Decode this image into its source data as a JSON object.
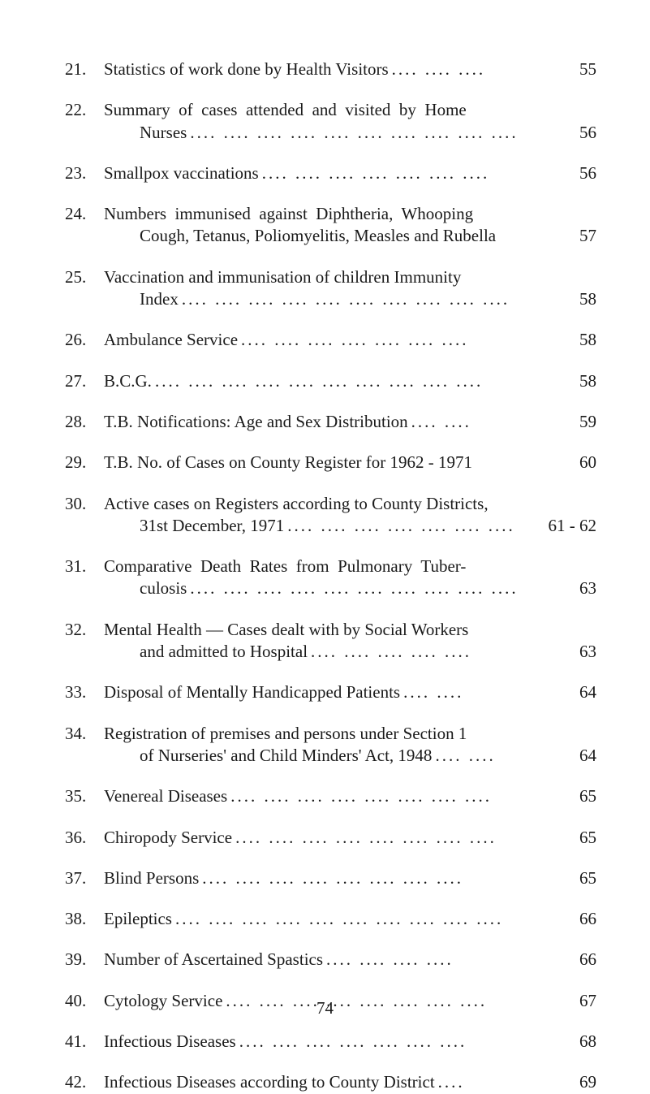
{
  "page_number": "74",
  "entries": [
    {
      "num": "21.",
      "lines": [
        {
          "text": "Statistics of work done by Health Visitors",
          "dots": ".... .... ....",
          "indent": false
        }
      ],
      "page": "55"
    },
    {
      "num": "22.",
      "lines": [
        {
          "text": "Summary  of  cases  attended  and  visited  by  Home",
          "dots": "",
          "indent": false
        },
        {
          "text": "Nurses",
          "dots": ".... .... .... .... .... .... .... .... .... ....",
          "indent": true
        }
      ],
      "page": "56"
    },
    {
      "num": "23.",
      "lines": [
        {
          "text": "Smallpox vaccinations",
          "dots": ".... .... .... .... .... .... ....",
          "indent": false
        }
      ],
      "page": "56"
    },
    {
      "num": "24.",
      "lines": [
        {
          "text": "Numbers  immunised  against  Diphtheria,  Whooping",
          "dots": "",
          "indent": false
        },
        {
          "text": "Cough, Tetanus, Poliomyelitis, Measles and Rubella",
          "dots": "",
          "indent": true
        }
      ],
      "page": "57"
    },
    {
      "num": "25.",
      "lines": [
        {
          "text": "Vaccination and immunisation of children Immunity",
          "dots": "",
          "indent": false
        },
        {
          "text": "Index",
          "dots": ".... .... .... .... .... .... .... .... .... ....",
          "indent": true
        }
      ],
      "page": "58"
    },
    {
      "num": "26.",
      "lines": [
        {
          "text": "Ambulance Service",
          "dots": ".... .... .... .... .... .... ....",
          "indent": false
        }
      ],
      "page": "58"
    },
    {
      "num": "27.",
      "lines": [
        {
          "text": "B.C.G.",
          "dots": ".... .... .... .... .... .... .... .... .... ....",
          "indent": false
        }
      ],
      "page": "58"
    },
    {
      "num": "28.",
      "lines": [
        {
          "text": "T.B. Notifications: Age and Sex Distribution",
          "dots": ".... ....",
          "indent": false
        }
      ],
      "page": "59"
    },
    {
      "num": "29.",
      "lines": [
        {
          "text": "T.B. No. of Cases on County Register for 1962 - 1971",
          "dots": "",
          "indent": false
        }
      ],
      "page": "60"
    },
    {
      "num": "30.",
      "lines": [
        {
          "text": "Active cases on Registers according to County Districts,",
          "dots": "",
          "indent": false
        },
        {
          "text": "31st December, 1971",
          "dots": ".... .... .... .... .... .... ....",
          "indent": true
        }
      ],
      "page": "61 - 62"
    },
    {
      "num": "31.",
      "lines": [
        {
          "text": "Comparative  Death  Rates  from  Pulmonary  Tuber-",
          "dots": "",
          "indent": false
        },
        {
          "text": "culosis",
          "dots": ".... .... .... .... .... .... .... .... .... ....",
          "indent": true
        }
      ],
      "page": "63"
    },
    {
      "num": "32.",
      "lines": [
        {
          "text": "Mental Health — Cases dealt with by Social Workers",
          "dots": "",
          "indent": false
        },
        {
          "text": "and admitted to Hospital",
          "dots": ".... .... .... .... ....",
          "indent": true
        }
      ],
      "page": "63"
    },
    {
      "num": "33.",
      "lines": [
        {
          "text": "Disposal of Mentally Handicapped Patients",
          "dots": ".... ....",
          "indent": false
        }
      ],
      "page": "64"
    },
    {
      "num": "34.",
      "lines": [
        {
          "text": "Registration of premises and persons under Section 1",
          "dots": "",
          "indent": false
        },
        {
          "text": "of Nurseries' and Child Minders' Act, 1948",
          "dots": ".... ....",
          "indent": true
        }
      ],
      "page": "64"
    },
    {
      "num": "35.",
      "lines": [
        {
          "text": "Venereal Diseases",
          "dots": ".... .... .... .... .... .... .... ....",
          "indent": false
        }
      ],
      "page": "65"
    },
    {
      "num": "36.",
      "lines": [
        {
          "text": "Chiropody Service",
          "dots": ".... .... .... .... .... .... .... ....",
          "indent": false
        }
      ],
      "page": "65"
    },
    {
      "num": "37.",
      "lines": [
        {
          "text": "Blind Persons",
          "dots": ".... .... .... .... .... .... .... ....",
          "indent": false
        }
      ],
      "page": "65"
    },
    {
      "num": "38.",
      "lines": [
        {
          "text": "Epileptics",
          "dots": ".... .... .... .... .... .... .... .... .... ....",
          "indent": false
        }
      ],
      "page": "66"
    },
    {
      "num": "39.",
      "lines": [
        {
          "text": "Number of Ascertained Spastics",
          "dots": ".... .... .... ....",
          "indent": false
        }
      ],
      "page": "66"
    },
    {
      "num": "40.",
      "lines": [
        {
          "text": "Cytology Service",
          "dots": ".... .... .... .... .... .... .... ....",
          "indent": false
        }
      ],
      "page": "67"
    },
    {
      "num": "41.",
      "lines": [
        {
          "text": "Infectious Diseases",
          "dots": ".... .... .... .... .... .... ....",
          "indent": false
        }
      ],
      "page": "68"
    },
    {
      "num": "42.",
      "lines": [
        {
          "text": "Infectious Diseases according to County District",
          "dots": "....",
          "indent": false
        }
      ],
      "page": "69"
    }
  ]
}
